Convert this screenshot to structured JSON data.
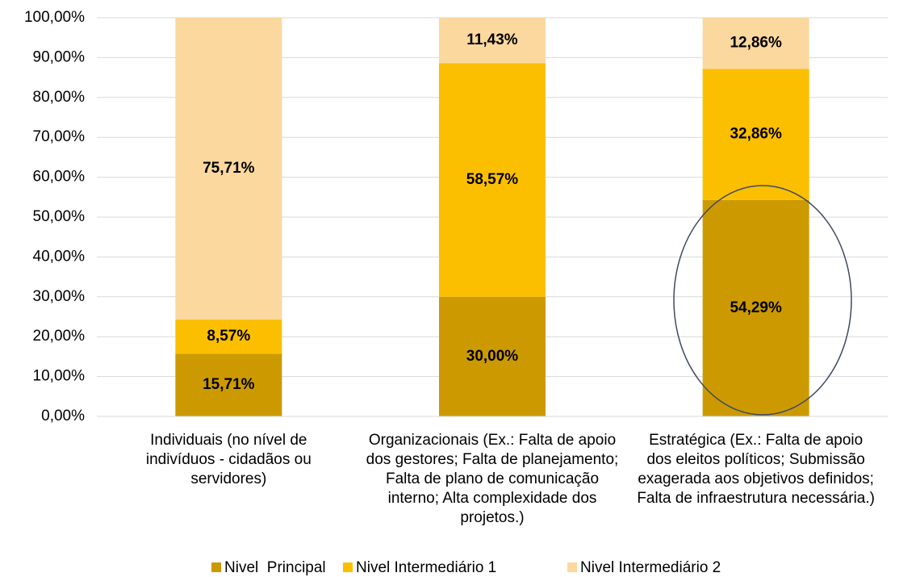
{
  "chart_data": {
    "type": "stacked_bar",
    "categories": [
      "Individuais (no nível de indivíduos - cidadãos ou servidores)",
      "Organizacionais (Ex.: Falta de apoio dos gestores; Falta de planejamento; Falta de plano de comunicação interno; Alta complexidade dos projetos.)",
      "Estratégica (Ex.: Falta de apoio dos eleitos políticos; Submissão exagerada aos objetivos definidos; Falta de infraestrutura necessária.)"
    ],
    "series": [
      {
        "name": "Nivel  Principal",
        "color": "#cc9a00",
        "values": [
          15.71,
          30.0,
          54.29
        ],
        "value_labels": [
          "15,71%",
          "30,00%",
          "54,29%"
        ]
      },
      {
        "name": "Nivel Intermediário 1",
        "color": "#fbbf00",
        "values": [
          8.57,
          58.57,
          32.86
        ],
        "value_labels": [
          "8,57%",
          "58,57%",
          "32,86%"
        ]
      },
      {
        "name": "Nivel Intermediário 2",
        "color": "#fbd89e",
        "values": [
          75.71,
          11.43,
          12.86
        ],
        "value_labels": [
          "75,71%",
          "11,43%",
          "12,86%"
        ]
      }
    ],
    "ylim": [
      0,
      100
    ],
    "yticks": [
      {
        "value": 0,
        "label": "0,00%"
      },
      {
        "value": 10,
        "label": "10,00%"
      },
      {
        "value": 20,
        "label": "20,00%"
      },
      {
        "value": 30,
        "label": "30,00%"
      },
      {
        "value": 40,
        "label": "40,00%"
      },
      {
        "value": 50,
        "label": "50,00%"
      },
      {
        "value": 60,
        "label": "60,00%"
      },
      {
        "value": 70,
        "label": "70,00%"
      },
      {
        "value": 80,
        "label": "80,00%"
      },
      {
        "value": 90,
        "label": "90,00%"
      },
      {
        "value": 100,
        "label": "100,00%"
      }
    ],
    "grid": true,
    "legend": "bottom"
  }
}
